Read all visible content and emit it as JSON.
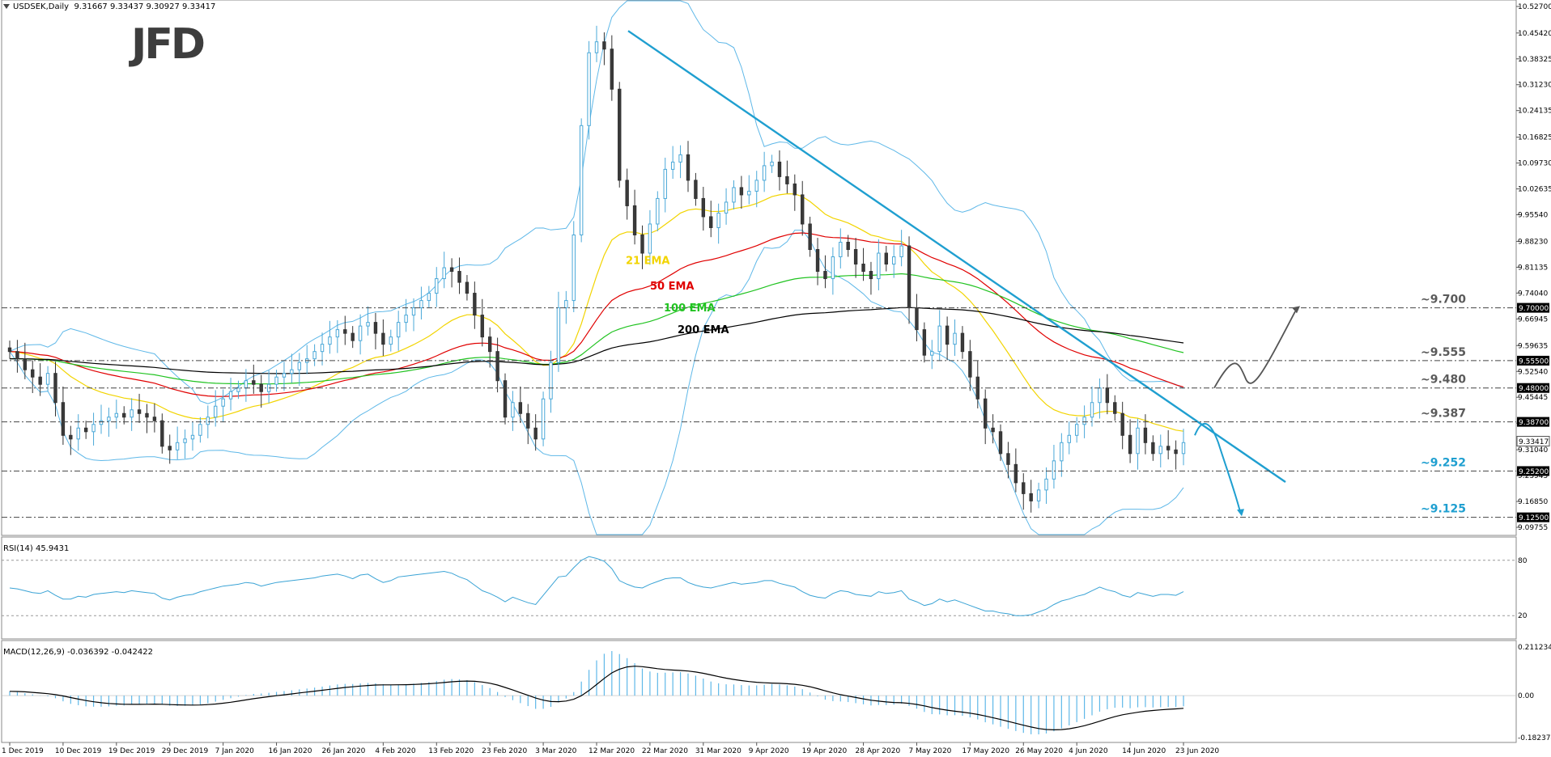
{
  "chart_data": {
    "type": "candlestick",
    "symbol": "USDSEK,Daily",
    "ohlc_header": "9.31667 9.33437 9.30927 9.33417",
    "logo": "JFD",
    "y_ticks": [
      "10.52700",
      "10.45420",
      "10.38325",
      "10.31230",
      "10.24135",
      "10.16825",
      "10.09730",
      "10.02635",
      "9.95540",
      "9.88230",
      "9.81135",
      "9.74040",
      "9.66945",
      "9.59635",
      "9.52540",
      "9.45445",
      "9.38350",
      "9.31040",
      "9.23945",
      "9.16850",
      "9.09755"
    ],
    "ylim": [
      9.0976,
      10.527
    ],
    "x_ticks": [
      "1 Dec 2019",
      "10 Dec 2019",
      "19 Dec 2019",
      "29 Dec 2019",
      "7 Jan 2020",
      "16 Jan 2020",
      "26 Jan 2020",
      "4 Feb 2020",
      "13 Feb 2020",
      "23 Feb 2020",
      "3 Mar 2020",
      "12 Mar 2020",
      "22 Mar 2020",
      "31 Mar 2020",
      "9 Apr 2020",
      "19 Apr 2020",
      "28 Apr 2020",
      "7 May 2020",
      "17 May 2020",
      "26 May 2020",
      "4 Jun 2020",
      "14 Jun 2020",
      "23 Jun 2020"
    ],
    "levels": [
      {
        "value": 9.7,
        "label": "~9.700",
        "tag": "9.70000",
        "color": "#5a5a5a"
      },
      {
        "value": 9.555,
        "label": "~9.555",
        "tag": "9.55500",
        "color": "#5a5a5a"
      },
      {
        "value": 9.48,
        "label": "~9.480",
        "tag": "9.48000",
        "color": "#5a5a5a"
      },
      {
        "value": 9.387,
        "label": "~9.387",
        "tag": "9.38700",
        "color": "#5a5a5a"
      },
      {
        "value": 9.252,
        "label": "~9.252",
        "tag": "9.25200",
        "color": "#1f9fd0"
      },
      {
        "value": 9.125,
        "label": "~9.125",
        "tag": "9.12500",
        "color": "#1f9fd0"
      }
    ],
    "current_price_tag": "9.33417",
    "ema_labels": [
      {
        "text": "21 EMA",
        "color": "#f2d400"
      },
      {
        "text": "50 EMA",
        "color": "#e00000"
      },
      {
        "text": "100 EMA",
        "color": "#21c321"
      },
      {
        "text": "200 EMA",
        "color": "#000000"
      }
    ],
    "close": [
      9.58,
      9.56,
      9.53,
      9.51,
      9.49,
      9.52,
      9.44,
      9.35,
      9.34,
      9.37,
      9.36,
      9.38,
      9.39,
      9.4,
      9.41,
      9.4,
      9.42,
      9.41,
      9.4,
      9.39,
      9.32,
      9.31,
      9.33,
      9.34,
      9.35,
      9.38,
      9.4,
      9.43,
      9.45,
      9.47,
      9.48,
      9.5,
      9.49,
      9.47,
      9.49,
      9.51,
      9.52,
      9.53,
      9.55,
      9.56,
      9.58,
      9.6,
      9.62,
      9.64,
      9.63,
      9.61,
      9.65,
      9.66,
      9.63,
      9.6,
      9.62,
      9.66,
      9.68,
      9.7,
      9.72,
      9.74,
      9.78,
      9.81,
      9.8,
      9.77,
      9.74,
      9.68,
      9.62,
      9.58,
      9.5,
      9.4,
      9.44,
      9.41,
      9.37,
      9.34,
      9.45,
      9.55,
      9.7,
      9.72,
      9.9,
      10.2,
      10.4,
      10.43,
      10.41,
      10.3,
      10.05,
      9.98,
      9.9,
      9.85,
      9.93,
      10.0,
      10.08,
      10.1,
      10.12,
      10.05,
      10.0,
      9.95,
      9.92,
      9.96,
      9.99,
      10.03,
      10.01,
      10.02,
      10.05,
      10.09,
      10.1,
      10.06,
      10.04,
      10.01,
      9.93,
      9.86,
      9.8,
      9.78,
      9.84,
      9.88,
      9.86,
      9.82,
      9.8,
      9.78,
      9.85,
      9.82,
      9.84,
      9.87,
      9.7,
      9.64,
      9.57,
      9.58,
      9.65,
      9.6,
      9.63,
      9.58,
      9.51,
      9.45,
      9.37,
      9.36,
      9.3,
      9.27,
      9.22,
      9.19,
      9.17,
      9.2,
      9.23,
      9.28,
      9.33,
      9.35,
      9.38,
      9.4,
      9.44,
      9.48,
      9.44,
      9.41,
      9.35,
      9.3,
      9.37,
      9.33,
      9.3,
      9.32,
      9.31,
      9.3,
      9.33
    ]
  },
  "rsi": {
    "label": "RSI(14) 45.9431",
    "ticks": [
      "80",
      "20"
    ],
    "values": [
      50,
      49,
      47,
      45,
      44,
      47,
      42,
      38,
      38,
      41,
      40,
      43,
      44,
      45,
      46,
      45,
      47,
      46,
      45,
      44,
      39,
      37,
      40,
      42,
      43,
      46,
      48,
      50,
      52,
      53,
      54,
      56,
      55,
      52,
      54,
      56,
      57,
      58,
      59,
      60,
      61,
      63,
      64,
      65,
      63,
      60,
      64,
      65,
      60,
      56,
      58,
      62,
      63,
      64,
      65,
      66,
      67,
      68,
      66,
      62,
      59,
      53,
      47,
      44,
      40,
      35,
      40,
      37,
      34,
      32,
      42,
      52,
      62,
      63,
      72,
      80,
      84,
      82,
      79,
      71,
      58,
      54,
      51,
      50,
      54,
      57,
      60,
      61,
      61,
      56,
      53,
      51,
      50,
      52,
      54,
      56,
      54,
      55,
      56,
      58,
      58,
      55,
      53,
      51,
      46,
      42,
      40,
      39,
      44,
      47,
      46,
      43,
      42,
      41,
      46,
      44,
      45,
      47,
      38,
      35,
      31,
      33,
      38,
      35,
      37,
      34,
      31,
      28,
      25,
      25,
      23,
      22,
      20,
      20,
      21,
      24,
      27,
      32,
      36,
      38,
      41,
      43,
      47,
      51,
      48,
      46,
      42,
      40,
      45,
      43,
      41,
      43,
      43,
      42,
      46
    ]
  },
  "macd": {
    "label": "MACD(12,26,9) -0.036392 -0.042422",
    "ticks": [
      "0.211234",
      "0.00",
      "-0.182374"
    ]
  }
}
